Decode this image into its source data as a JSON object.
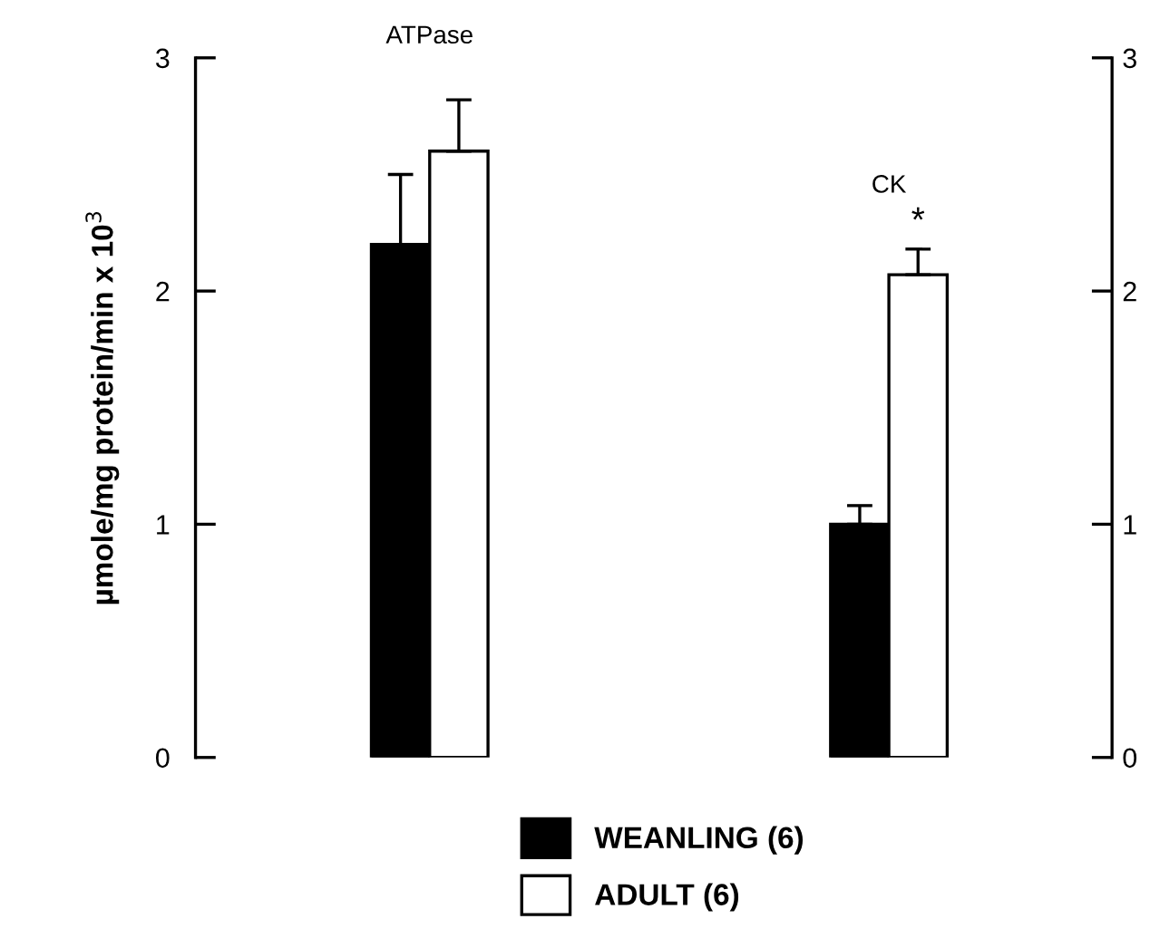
{
  "chart_data": {
    "type": "bar",
    "categories": [
      "ATPase",
      "CK"
    ],
    "series": [
      {
        "name": "WEANLING (6)",
        "color": "#000000",
        "values": [
          2.2,
          1.0
        ],
        "errors": [
          [
            2.2,
            2.5
          ],
          [
            1.0,
            1.08
          ]
        ]
      },
      {
        "name": "ADULT (6)",
        "color": "#ffffff",
        "values": [
          2.6,
          2.07
        ],
        "errors": [
          [
            2.6,
            2.82
          ],
          [
            2.07,
            2.18
          ]
        ]
      }
    ],
    "ylabel": "µmole/mg protein/min x 10$^{3}$",
    "ylim": [
      0,
      3
    ],
    "yticks": [
      0,
      1,
      2,
      3
    ],
    "y2lim": [
      0,
      3
    ],
    "y2ticks": [
      0,
      1,
      2,
      3
    ],
    "annotations": [
      "*"
    ],
    "grid": false,
    "legend": "bottom"
  }
}
